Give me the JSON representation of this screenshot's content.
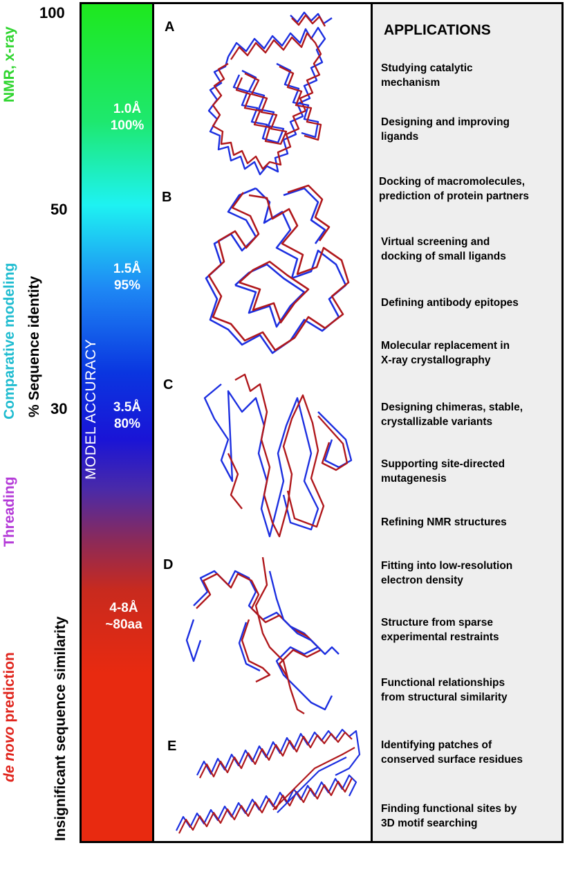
{
  "left_labels": {
    "nmr": "NMR, x-ray",
    "comparative": "Comparative modeling",
    "threading": "Threading",
    "de_novo_italic": "de novo",
    "de_novo_rest": " prediction",
    "seq_identity": "% Sequence identity",
    "insignificant": "Insignificant sequence similarity"
  },
  "ticks": {
    "t100": "100",
    "t50": "50",
    "t30": "30"
  },
  "bar": {
    "title": "MODEL ACCURACY",
    "levels": [
      {
        "rmsd": "1.0Å",
        "value": "100%"
      },
      {
        "rmsd": "1.5Å",
        "value": "95%"
      },
      {
        "rmsd": "3.5Å",
        "value": "80%"
      },
      {
        "rmsd": "4-8Å",
        "value": "~80aa"
      }
    ]
  },
  "panels": [
    "A",
    "B",
    "C",
    "D",
    "E"
  ],
  "applications": {
    "title": "APPLICATIONS",
    "items": [
      [
        "Studying catalytic",
        "mechanism"
      ],
      [
        "Designing and improving",
        "ligands"
      ],
      [
        "Docking of macromolecules,",
        "prediction of protein partners"
      ],
      [
        "Virtual screening and",
        "docking of small ligands"
      ],
      [
        "Defining antibody epitopes"
      ],
      [
        "Molecular replacement in",
        "X-ray crystallography"
      ],
      [
        "Designing chimeras, stable,",
        "crystallizable variants"
      ],
      [
        "Supporting site-directed",
        "mutagenesis"
      ],
      [
        "Refining NMR structures"
      ],
      [
        "Fitting into low-resolution",
        "electron density"
      ],
      [
        "Structure from sparse",
        "experimental restraints"
      ],
      [
        "Functional relationships",
        "from structural similarity"
      ],
      [
        "Identifying patches of",
        "conserved surface residues"
      ],
      [
        "Finding functional sites by",
        "3D motif searching"
      ]
    ]
  },
  "colors": {
    "model": "#1c2fe0",
    "experiment": "#b0181c",
    "nmr": "#2fd52f",
    "comparative": "#1fbcd0",
    "threading": "#b43ad8",
    "de_novo": "#e0241c"
  }
}
